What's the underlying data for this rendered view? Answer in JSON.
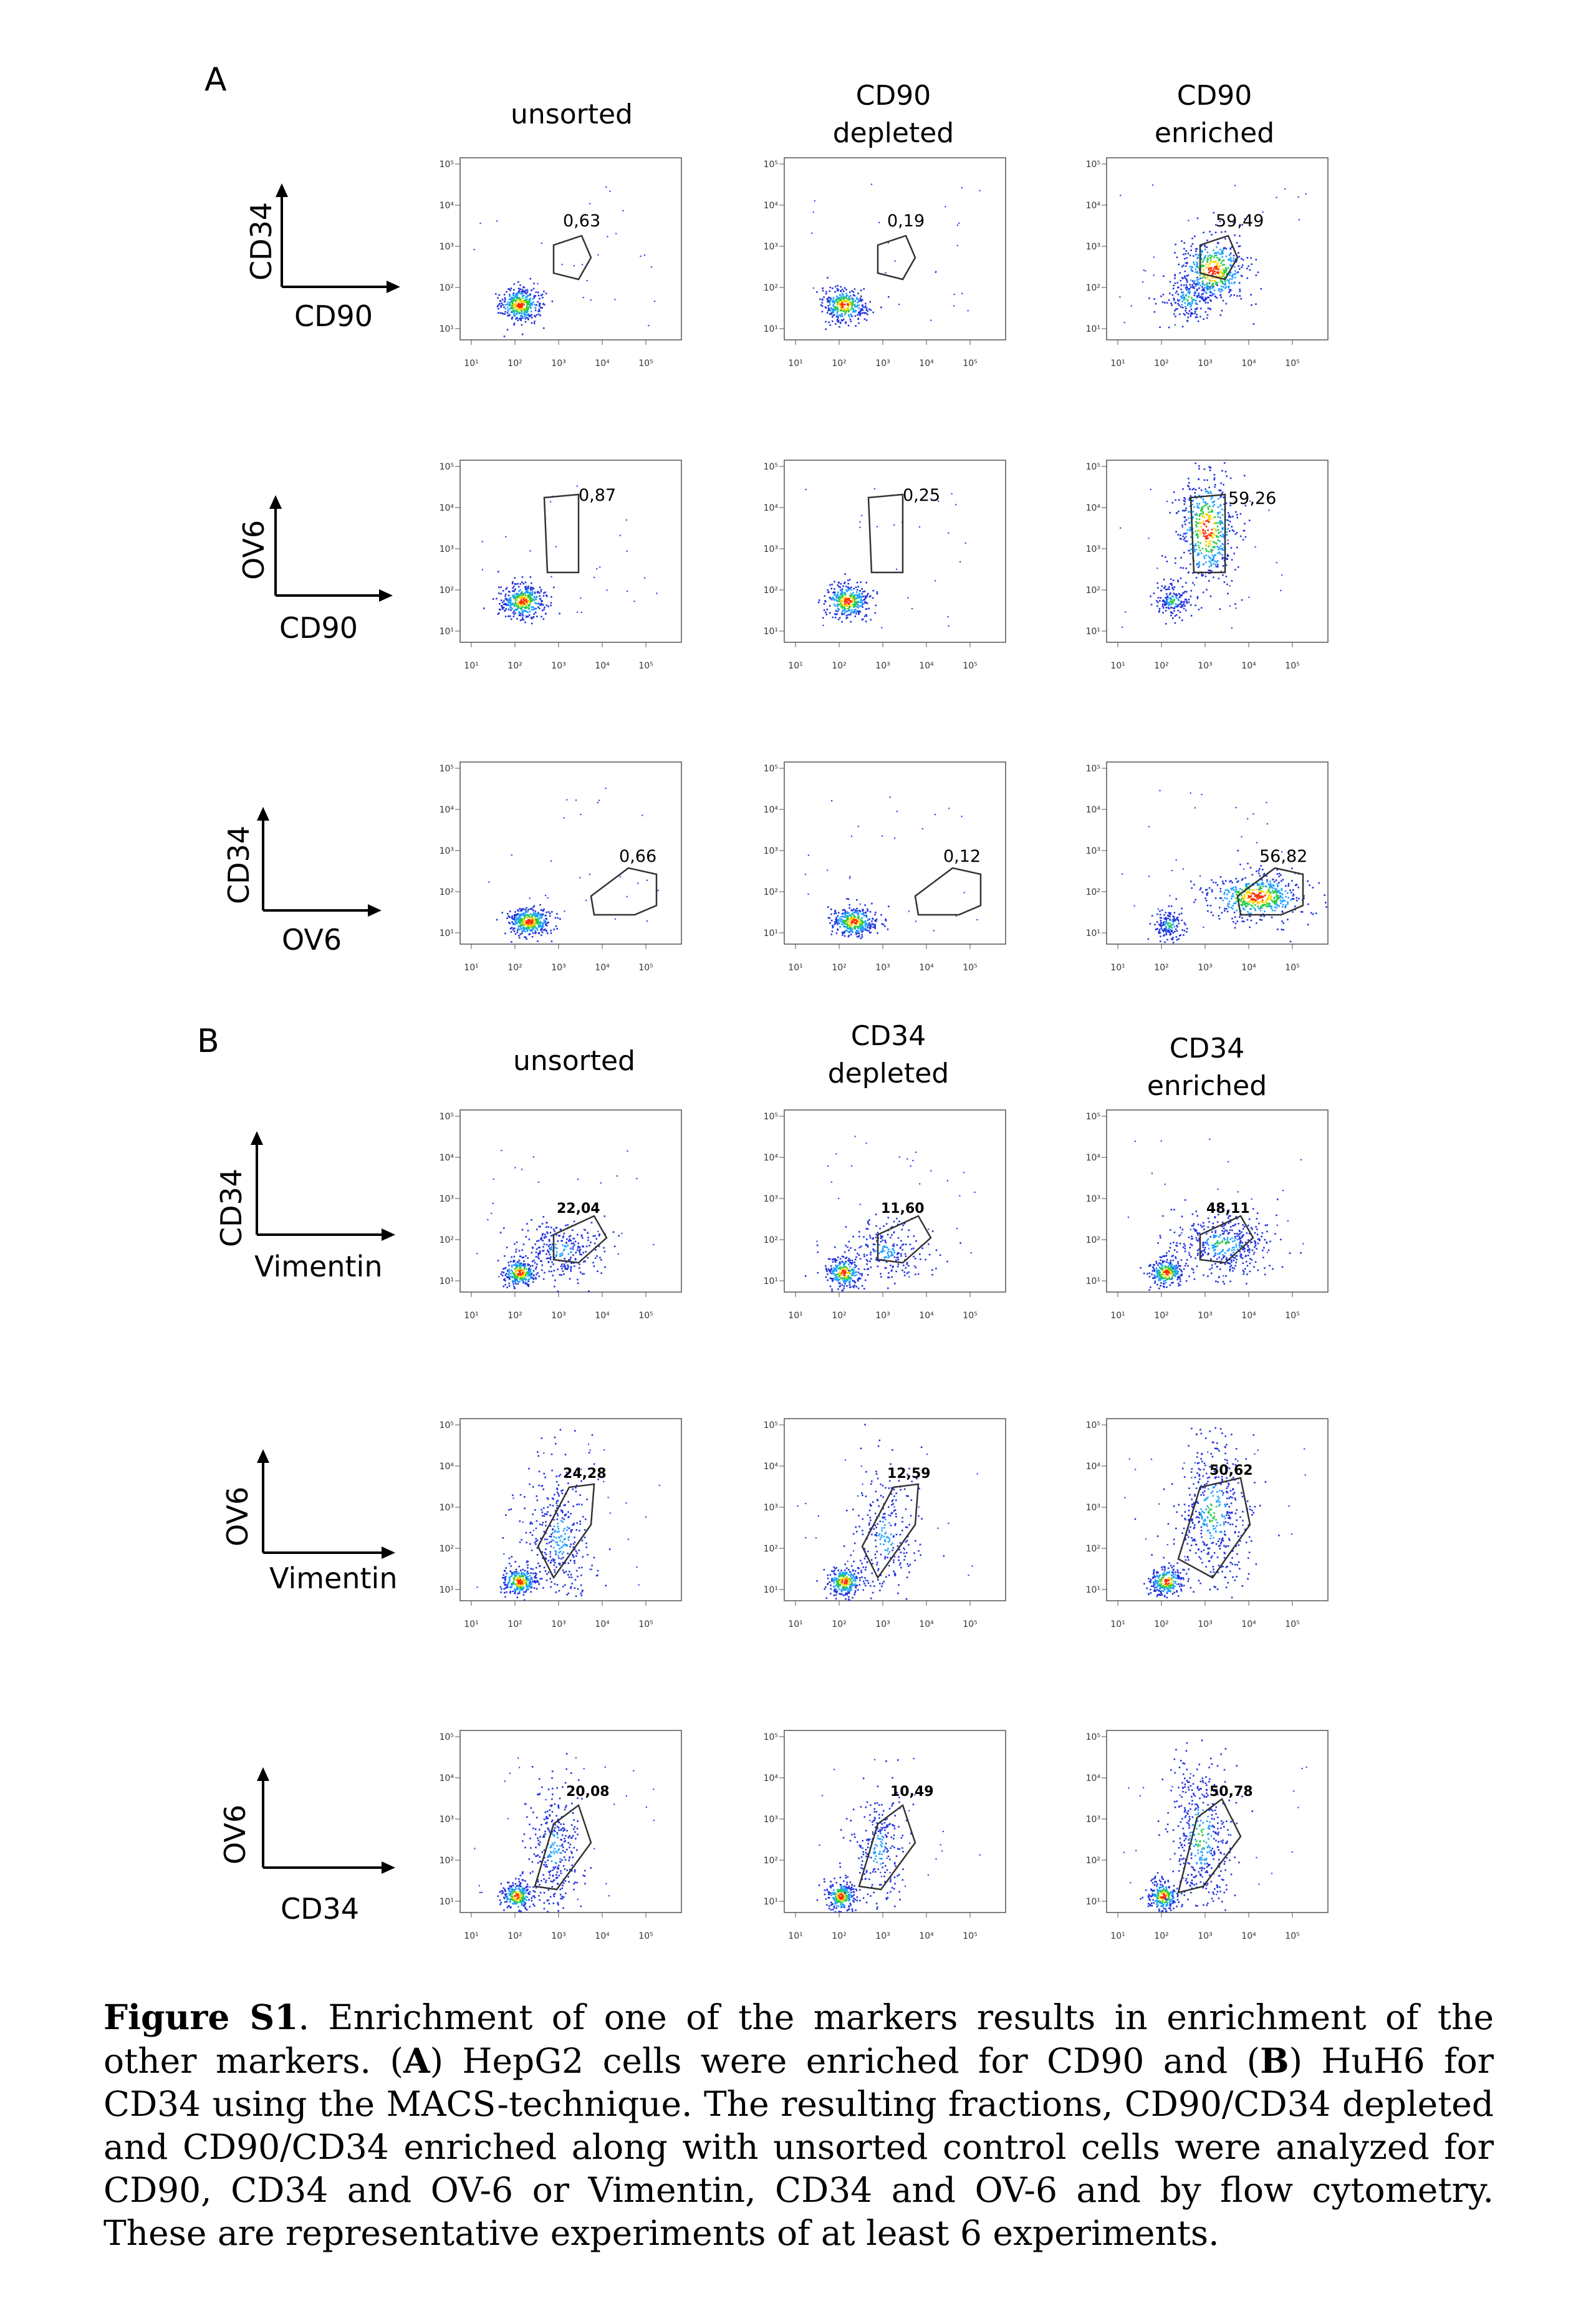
{
  "panels": [
    {
      "letter": "A",
      "columns": [
        {
          "line1": "unsorted",
          "line2": ""
        },
        {
          "line1": "CD90",
          "line2": "depleted"
        },
        {
          "line1": "CD90",
          "line2": "enriched"
        }
      ],
      "rows": [
        {
          "y_axis": "CD34",
          "x_axis": "CD90",
          "gates": [
            "0,63",
            "0,19",
            "59,49"
          ]
        },
        {
          "y_axis": "OV6",
          "x_axis": "CD90",
          "gates": [
            "0,87",
            "0,25",
            "59,26"
          ]
        },
        {
          "y_axis": "CD34",
          "x_axis": "OV6",
          "gates": [
            "0,66",
            "0,12",
            "56,82"
          ]
        }
      ]
    },
    {
      "letter": "B",
      "columns": [
        {
          "line1": "unsorted",
          "line2": ""
        },
        {
          "line1": "CD34",
          "line2": "depleted"
        },
        {
          "line1": "CD34",
          "line2": "enriched"
        }
      ],
      "rows": [
        {
          "y_axis": "CD34",
          "x_axis": "Vimentin",
          "gates": [
            "22,04",
            "11,60",
            "48,11"
          ]
        },
        {
          "y_axis": "OV6",
          "x_axis": "Vimentin",
          "gates": [
            "24,28",
            "12,59",
            "50,62"
          ]
        },
        {
          "y_axis": "OV6",
          "x_axis": "CD34",
          "gates": [
            "20,08",
            "10,49",
            "50,78"
          ]
        }
      ]
    }
  ],
  "tick_labels": [
    "10¹",
    "10²",
    "10³",
    "10⁴",
    "10⁵"
  ],
  "caption": {
    "label": "Figure S1",
    "sentence1": ". Enrichment of one of the markers results in enrichment of the other markers.",
    "open_a": " (",
    "a": "A",
    "a_text": ") HepG2 cells were enriched for CD90 and (",
    "b": "B",
    "b_text": ") HuH6 for CD34 using the MACS-technique. The resulting fractions, CD90/CD34 depleted and CD90/CD34 enriched along with unsorted control cells were analyzed for CD90, CD34 and OV-6 or Vimentin, CD34 and OV-6 and by flow cytometry. These are representative experiments of at least 6 experiments."
  }
}
